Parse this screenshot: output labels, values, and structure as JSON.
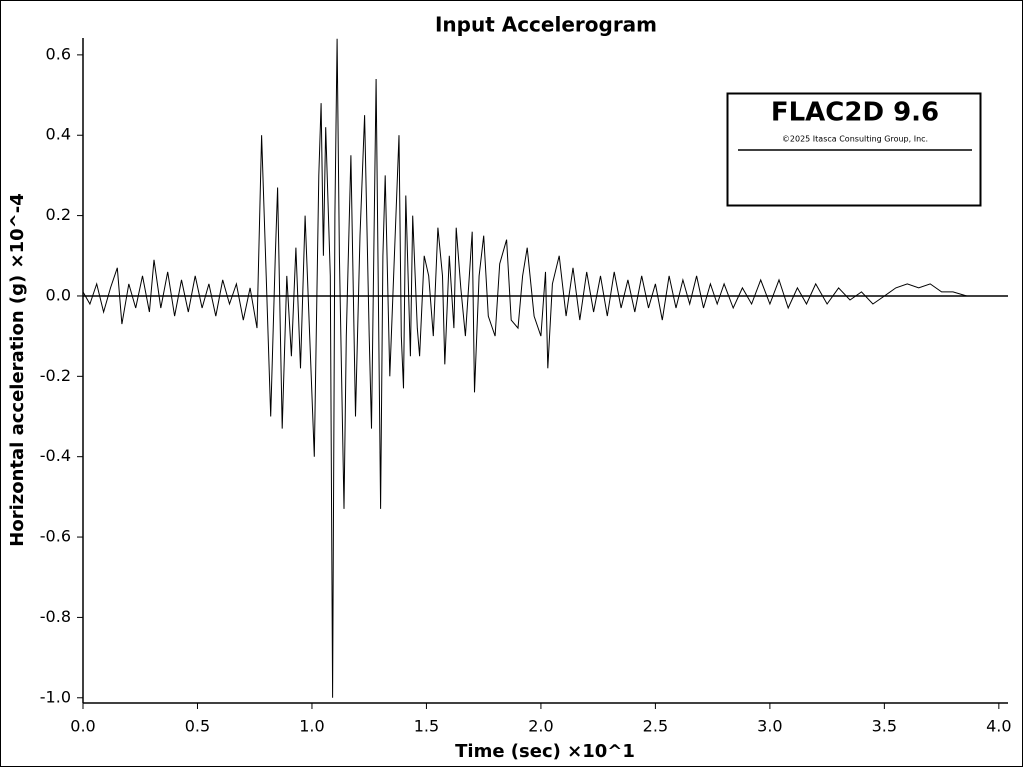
{
  "chart_data": {
    "type": "line",
    "title": "Input Accelerogram",
    "xlabel": "Time (sec) ×10^1",
    "ylabel": "Horizontal acceleration (g) ×10^-4",
    "legend": {
      "title": "FLAC2D 9.6",
      "subtitle": "©2025 Itasca Consulting Group, Inc.",
      "color": "#6a33f0"
    },
    "color": "#000000",
    "xlim": [
      0,
      4.04
    ],
    "ylim": [
      -1.013,
      0.642
    ],
    "xticks": [
      {
        "value": 0,
        "label": "0.0"
      },
      0.5,
      {
        "value": 1,
        "label": "1.0"
      },
      1.5,
      {
        "value": 2,
        "label": "2.0"
      },
      2.5,
      {
        "value": 3,
        "label": "3.0"
      },
      3.5,
      {
        "value": 4,
        "label": "4.0"
      }
    ],
    "yticks": [
      0.6,
      0.4,
      0.2,
      {
        "value": 0,
        "label": "0.0"
      },
      -0.2,
      -0.4,
      -0.6,
      -0.8,
      {
        "value": -1,
        "label": "-1.0"
      }
    ],
    "x": [
      0.0,
      0.03,
      0.06,
      0.09,
      0.12,
      0.15,
      0.17,
      0.2,
      0.23,
      0.26,
      0.29,
      0.31,
      0.34,
      0.37,
      0.4,
      0.43,
      0.46,
      0.49,
      0.52,
      0.55,
      0.58,
      0.61,
      0.64,
      0.67,
      0.7,
      0.73,
      0.76,
      0.78,
      0.8,
      0.82,
      0.84,
      0.85,
      0.87,
      0.89,
      0.91,
      0.93,
      0.95,
      0.97,
      0.99,
      1.01,
      1.03,
      1.04,
      1.05,
      1.06,
      1.08,
      1.09,
      1.1,
      1.11,
      1.12,
      1.14,
      1.15,
      1.17,
      1.19,
      1.21,
      1.23,
      1.25,
      1.26,
      1.28,
      1.3,
      1.31,
      1.32,
      1.34,
      1.36,
      1.38,
      1.39,
      1.4,
      1.41,
      1.43,
      1.44,
      1.46,
      1.47,
      1.49,
      1.51,
      1.53,
      1.55,
      1.57,
      1.58,
      1.6,
      1.62,
      1.63,
      1.65,
      1.67,
      1.7,
      1.71,
      1.73,
      1.75,
      1.77,
      1.8,
      1.82,
      1.85,
      1.87,
      1.9,
      1.92,
      1.94,
      1.97,
      2.0,
      2.02,
      2.03,
      2.05,
      2.08,
      2.11,
      2.14,
      2.17,
      2.2,
      2.23,
      2.26,
      2.29,
      2.32,
      2.35,
      2.38,
      2.41,
      2.44,
      2.47,
      2.5,
      2.53,
      2.56,
      2.59,
      2.62,
      2.65,
      2.68,
      2.71,
      2.74,
      2.77,
      2.8,
      2.84,
      2.88,
      2.92,
      2.96,
      3.0,
      3.04,
      3.08,
      3.12,
      3.16,
      3.2,
      3.25,
      3.3,
      3.35,
      3.4,
      3.45,
      3.5,
      3.55,
      3.6,
      3.65,
      3.7,
      3.75,
      3.8,
      3.86
    ],
    "values": [
      0.01,
      -0.02,
      0.03,
      -0.04,
      0.02,
      0.07,
      -0.07,
      0.03,
      -0.03,
      0.05,
      -0.04,
      0.09,
      -0.03,
      0.06,
      -0.05,
      0.04,
      -0.04,
      0.05,
      -0.03,
      0.03,
      -0.05,
      0.04,
      -0.02,
      0.03,
      -0.06,
      0.02,
      -0.08,
      0.4,
      0.05,
      -0.3,
      0.1,
      0.27,
      -0.33,
      0.05,
      -0.15,
      0.12,
      -0.18,
      0.2,
      -0.1,
      -0.4,
      0.3,
      0.48,
      0.1,
      0.42,
      0.05,
      -1.0,
      0.2,
      0.64,
      0.1,
      -0.53,
      -0.1,
      0.35,
      -0.3,
      0.15,
      0.45,
      -0.1,
      -0.33,
      0.54,
      -0.53,
      0.1,
      0.3,
      -0.2,
      0.1,
      0.4,
      -0.1,
      -0.23,
      0.25,
      -0.15,
      0.2,
      -0.08,
      -0.15,
      0.1,
      0.05,
      -0.1,
      0.17,
      0.05,
      -0.17,
      0.1,
      -0.08,
      0.17,
      0.02,
      -0.1,
      0.16,
      -0.24,
      0.05,
      0.15,
      -0.05,
      -0.1,
      0.08,
      0.14,
      -0.06,
      -0.08,
      0.05,
      0.12,
      -0.05,
      -0.1,
      0.06,
      -0.18,
      0.03,
      0.1,
      -0.05,
      0.07,
      -0.06,
      0.06,
      -0.04,
      0.05,
      -0.05,
      0.06,
      -0.03,
      0.04,
      -0.04,
      0.05,
      -0.03,
      0.03,
      -0.06,
      0.05,
      -0.03,
      0.04,
      -0.02,
      0.05,
      -0.03,
      0.03,
      -0.02,
      0.03,
      -0.03,
      0.02,
      -0.02,
      0.04,
      -0.02,
      0.04,
      -0.03,
      0.02,
      -0.02,
      0.03,
      -0.02,
      0.02,
      -0.01,
      0.01,
      -0.02,
      0.0,
      0.02,
      0.03,
      0.02,
      0.03,
      0.01,
      0.01,
      0.0
    ]
  }
}
